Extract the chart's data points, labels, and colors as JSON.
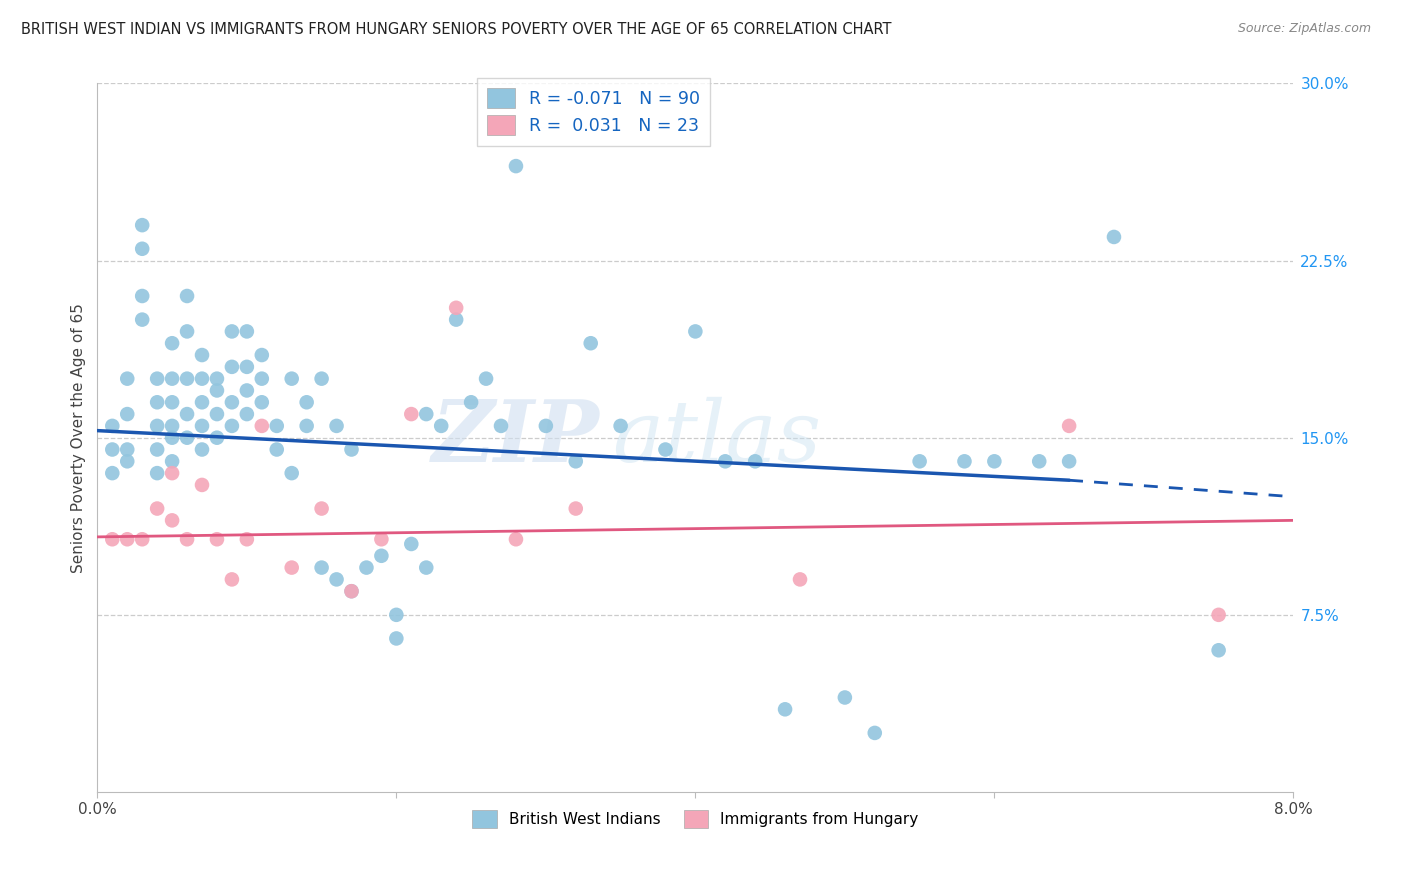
{
  "title": "BRITISH WEST INDIAN VS IMMIGRANTS FROM HUNGARY SENIORS POVERTY OVER THE AGE OF 65 CORRELATION CHART",
  "source": "Source: ZipAtlas.com",
  "ylabel": "Seniors Poverty Over the Age of 65",
  "xlim": [
    0.0,
    0.08
  ],
  "ylim": [
    0.0,
    0.3
  ],
  "color_blue": "#92c5de",
  "color_pink": "#f4a6b8",
  "color_trend_blue": "#1a56b0",
  "color_trend_pink": "#e05880",
  "background": "#ffffff",
  "watermark_zip": "ZIP",
  "watermark_atlas": "atlas",
  "blue_trend_x0": 0.0,
  "blue_trend_y0": 0.153,
  "blue_trend_x1": 0.065,
  "blue_trend_y1": 0.132,
  "blue_trend_xd": 0.08,
  "blue_trend_yd": 0.125,
  "pink_trend_x0": 0.0,
  "pink_trend_y0": 0.108,
  "pink_trend_x1": 0.08,
  "pink_trend_y1": 0.115,
  "blue_points_x": [
    0.001,
    0.001,
    0.001,
    0.002,
    0.002,
    0.002,
    0.002,
    0.003,
    0.003,
    0.003,
    0.003,
    0.004,
    0.004,
    0.004,
    0.004,
    0.004,
    0.005,
    0.005,
    0.005,
    0.005,
    0.005,
    0.005,
    0.006,
    0.006,
    0.006,
    0.006,
    0.006,
    0.007,
    0.007,
    0.007,
    0.007,
    0.007,
    0.008,
    0.008,
    0.008,
    0.008,
    0.009,
    0.009,
    0.009,
    0.009,
    0.01,
    0.01,
    0.01,
    0.01,
    0.011,
    0.011,
    0.011,
    0.012,
    0.012,
    0.013,
    0.013,
    0.014,
    0.014,
    0.015,
    0.015,
    0.016,
    0.016,
    0.017,
    0.017,
    0.018,
    0.019,
    0.02,
    0.02,
    0.021,
    0.022,
    0.022,
    0.023,
    0.024,
    0.025,
    0.026,
    0.027,
    0.028,
    0.03,
    0.032,
    0.033,
    0.035,
    0.038,
    0.04,
    0.042,
    0.044,
    0.046,
    0.05,
    0.052,
    0.055,
    0.058,
    0.06,
    0.063,
    0.065,
    0.068,
    0.075
  ],
  "blue_points_y": [
    0.145,
    0.155,
    0.135,
    0.175,
    0.16,
    0.145,
    0.14,
    0.24,
    0.23,
    0.21,
    0.2,
    0.175,
    0.165,
    0.155,
    0.145,
    0.135,
    0.19,
    0.175,
    0.165,
    0.155,
    0.15,
    0.14,
    0.21,
    0.195,
    0.175,
    0.16,
    0.15,
    0.185,
    0.175,
    0.165,
    0.155,
    0.145,
    0.175,
    0.17,
    0.16,
    0.15,
    0.195,
    0.18,
    0.165,
    0.155,
    0.195,
    0.18,
    0.17,
    0.16,
    0.185,
    0.175,
    0.165,
    0.155,
    0.145,
    0.175,
    0.135,
    0.165,
    0.155,
    0.175,
    0.095,
    0.155,
    0.09,
    0.145,
    0.085,
    0.095,
    0.1,
    0.065,
    0.075,
    0.105,
    0.095,
    0.16,
    0.155,
    0.2,
    0.165,
    0.175,
    0.155,
    0.265,
    0.155,
    0.14,
    0.19,
    0.155,
    0.145,
    0.195,
    0.14,
    0.14,
    0.035,
    0.04,
    0.025,
    0.14,
    0.14,
    0.14,
    0.14,
    0.14,
    0.235,
    0.06
  ],
  "pink_points_x": [
    0.001,
    0.002,
    0.003,
    0.004,
    0.005,
    0.005,
    0.006,
    0.007,
    0.008,
    0.009,
    0.01,
    0.011,
    0.013,
    0.015,
    0.017,
    0.019,
    0.021,
    0.024,
    0.028,
    0.032,
    0.047,
    0.065,
    0.075
  ],
  "pink_points_y": [
    0.107,
    0.107,
    0.107,
    0.12,
    0.115,
    0.135,
    0.107,
    0.13,
    0.107,
    0.09,
    0.107,
    0.155,
    0.095,
    0.12,
    0.085,
    0.107,
    0.16,
    0.205,
    0.107,
    0.12,
    0.09,
    0.155,
    0.075
  ]
}
